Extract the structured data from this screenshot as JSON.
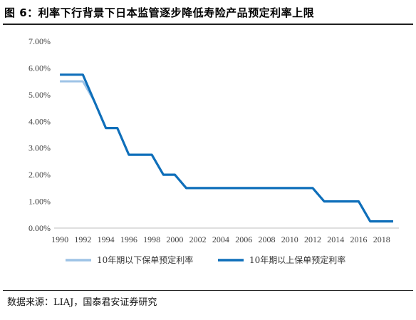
{
  "page": {
    "title": "图 6：利率下行背景下日本监管逐步降低寿险产品预定利率上限",
    "source": "数据来源：LIAJ，国泰君安证券研究"
  },
  "chart_data": {
    "type": "line",
    "title": "",
    "xlabel": "",
    "ylabel": "",
    "x_ticks": [
      "1990",
      "1992",
      "1994",
      "1996",
      "1998",
      "2000",
      "2002",
      "2004",
      "2006",
      "2008",
      "2010",
      "2012",
      "2014",
      "2016",
      "2018"
    ],
    "y_ticks": [
      "0.00%",
      "1.00%",
      "2.00%",
      "3.00%",
      "4.00%",
      "5.00%",
      "6.00%",
      "7.00%"
    ],
    "xlim": [
      1989.5,
      2019.5
    ],
    "ylim": [
      0,
      7
    ],
    "grid": false,
    "legend": "bottom",
    "series": [
      {
        "name": "10年期以下保单预定利率",
        "color": "#9dc3e6",
        "x": [
          1990,
          1992,
          1993,
          1994,
          1995,
          1996,
          1998,
          1999,
          2000,
          2001,
          2012,
          2013,
          2016,
          2017,
          2019
        ],
        "y": [
          5.5,
          5.5,
          4.75,
          3.75,
          3.75,
          2.75,
          2.75,
          2.0,
          2.0,
          1.5,
          1.5,
          1.0,
          1.0,
          0.25,
          0.25
        ]
      },
      {
        "name": "10年期以上保单预定利率",
        "color": "#0f6fba",
        "x": [
          1990,
          1992,
          1993,
          1994,
          1995,
          1996,
          1998,
          1999,
          2000,
          2001,
          2012,
          2013,
          2016,
          2017,
          2019
        ],
        "y": [
          5.75,
          5.75,
          4.75,
          3.75,
          3.75,
          2.75,
          2.75,
          2.0,
          2.0,
          1.5,
          1.5,
          1.0,
          1.0,
          0.25,
          0.25
        ]
      }
    ]
  }
}
